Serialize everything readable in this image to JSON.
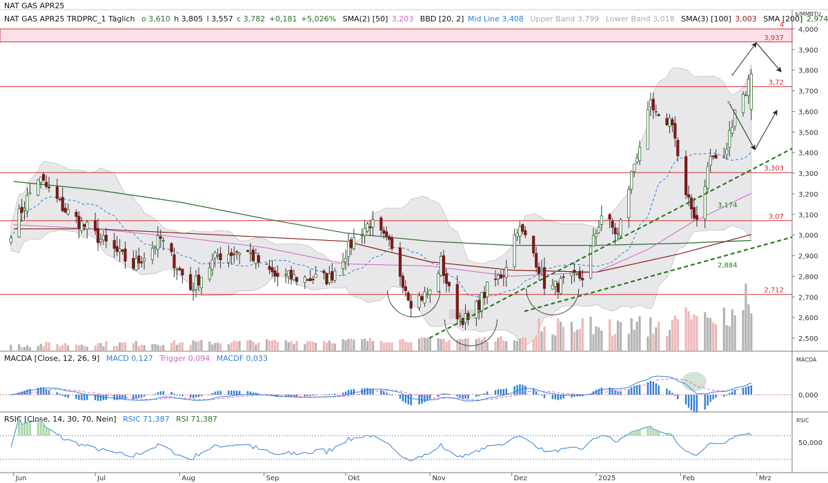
{
  "header": {
    "title": "NAT GAS APR25",
    "instrument": "NAT GAS APR25 TRDPRC_1 Täglich",
    "open": "o 3,610",
    "high": "h 3,805",
    "low": "l 3,557",
    "close": "c 3,782",
    "change": "+0,181",
    "change_pct": "+5,026%",
    "sma2": "SMA(2) [50]",
    "sma2_val": "3,203",
    "bbd": "BBD [20, 2]",
    "bbd_mid": "Mid Line 3,408",
    "bbd_upper": "Upper Band 3,799",
    "bbd_lower": "Lower Band 3,018",
    "sma3": "SMA(3) [100]",
    "sma3_val": "3,003",
    "sma4": "SMA [200]",
    "sma4_val": "2,974"
  },
  "macd_legend": {
    "name": "MACDA [Close, 12, 26, 9]",
    "macd": "MACD 0,127",
    "trigger": "Trigger 0,094",
    "macdf": "MACDF 0,033",
    "axis_title": "MACDA",
    "zero_label": "0,000"
  },
  "rsi_legend": {
    "name": "RSIC [Close, 14, 30, 70, Nein]",
    "rsic": "RSIC 71,387",
    "rsi": "RSI 71,387",
    "axis_title": "RSIC",
    "level_label": "50,000"
  },
  "colors": {
    "up": "#2a6e2a",
    "down": "#7a1a1a",
    "level": "#d42a2a",
    "band_fill": "#e8e8ea",
    "mid": "#2f7fd8",
    "sma50": "#cc66cc",
    "sma100": "#8a1a1a",
    "sma200": "#2a6a2a",
    "trend": "#2a7a1a",
    "macd_line": "#2f7fd8",
    "trigger": "#cc66cc",
    "rsi_line": "#2f7fd8"
  },
  "chart_data": [
    {
      "type": "candlestick",
      "title": "NAT GAS APR25",
      "ylabel": "$/MMBTU",
      "x_ticks": [
        "Jun",
        "Jul",
        "Aug",
        "Sep",
        "Okt",
        "Nov",
        "Dez",
        "2025",
        "Feb",
        "Mrz"
      ],
      "y_ticks": [
        "2,500",
        "2,600",
        "2,700",
        "2,800",
        "2,900",
        "3,000",
        "3,100",
        "3,200",
        "3,300",
        "3,400",
        "3,500",
        "3,600",
        "3,700",
        "3,800",
        "3,900",
        "4,000"
      ],
      "ylim": [
        2.45,
        4.04
      ],
      "levels": [
        {
          "value": 3.937,
          "label": "3,937"
        },
        {
          "value": 3.72,
          "label": "3,72"
        },
        {
          "value": 3.303,
          "label": "3,303"
        },
        {
          "value": 3.07,
          "label": "3,07"
        },
        {
          "value": 2.712,
          "label": "2,712"
        }
      ],
      "zone": {
        "from": 3.937,
        "to": 4.0,
        "label": "4"
      },
      "trend_labels": [
        {
          "value": 3.174,
          "label": "3,174"
        },
        {
          "value": 2.884,
          "label": "2,884"
        }
      ],
      "anchors": [
        {
          "date": "2024-05-31",
          "close": 3.02
        },
        {
          "date": "2024-06-10",
          "close": 3.28
        },
        {
          "date": "2024-06-20",
          "close": 3.12
        },
        {
          "date": "2024-07-01",
          "close": 3.0
        },
        {
          "date": "2024-07-15",
          "close": 2.85
        },
        {
          "date": "2024-07-25",
          "close": 2.98
        },
        {
          "date": "2024-08-05",
          "close": 2.74
        },
        {
          "date": "2024-08-15",
          "close": 2.9
        },
        {
          "date": "2024-08-25",
          "close": 2.93
        },
        {
          "date": "2024-09-05",
          "close": 2.8
        },
        {
          "date": "2024-09-15",
          "close": 2.79
        },
        {
          "date": "2024-09-25",
          "close": 2.79
        },
        {
          "date": "2024-10-05",
          "close": 3.0
        },
        {
          "date": "2024-10-10",
          "close": 3.06
        },
        {
          "date": "2024-10-17",
          "close": 2.95
        },
        {
          "date": "2024-10-25",
          "close": 2.68
        },
        {
          "date": "2024-11-01",
          "close": 2.72
        },
        {
          "date": "2024-11-05",
          "close": 2.87
        },
        {
          "date": "2024-11-10",
          "close": 2.63
        },
        {
          "date": "2024-11-15",
          "close": 2.58
        },
        {
          "date": "2024-11-22",
          "close": 2.74
        },
        {
          "date": "2024-11-28",
          "close": 2.82
        },
        {
          "date": "2024-12-03",
          "close": 3.04
        },
        {
          "date": "2024-12-08",
          "close": 2.95
        },
        {
          "date": "2024-12-14",
          "close": 2.73
        },
        {
          "date": "2024-12-20",
          "close": 2.77
        },
        {
          "date": "2024-12-27",
          "close": 2.8
        },
        {
          "date": "2025-01-03",
          "close": 3.1
        },
        {
          "date": "2025-01-09",
          "close": 3.0
        },
        {
          "date": "2025-01-15",
          "close": 3.35
        },
        {
          "date": "2025-01-21",
          "close": 3.62
        },
        {
          "date": "2025-01-24",
          "close": 3.55
        },
        {
          "date": "2025-01-29",
          "close": 3.56
        },
        {
          "date": "2025-02-02",
          "close": 3.2
        },
        {
          "date": "2025-02-07",
          "close": 3.08
        },
        {
          "date": "2025-02-12",
          "close": 3.38
        },
        {
          "date": "2025-02-17",
          "close": 3.36
        },
        {
          "date": "2025-02-21",
          "close": 3.62
        },
        {
          "date": "2025-02-25",
          "close": 3.7
        },
        {
          "date": "2025-02-27",
          "close": 3.782
        }
      ],
      "sma50": [
        {
          "date": "2024-06-01",
          "value": 3.05
        },
        {
          "date": "2024-07-01",
          "value": 3.03
        },
        {
          "date": "2024-08-01",
          "value": 2.99
        },
        {
          "date": "2024-09-01",
          "value": 2.94
        },
        {
          "date": "2024-10-01",
          "value": 2.86
        },
        {
          "date": "2024-11-01",
          "value": 2.85
        },
        {
          "date": "2024-12-01",
          "value": 2.8
        },
        {
          "date": "2025-01-01",
          "value": 2.82
        },
        {
          "date": "2025-01-20",
          "value": 2.93
        },
        {
          "date": "2025-02-05",
          "value": 3.06
        },
        {
          "date": "2025-02-27",
          "value": 3.203
        }
      ],
      "sma100": [
        {
          "date": "2024-06-01",
          "value": 3.03
        },
        {
          "date": "2024-07-01",
          "value": 3.03
        },
        {
          "date": "2024-08-01",
          "value": 3.01
        },
        {
          "date": "2024-09-01",
          "value": 2.99
        },
        {
          "date": "2024-10-01",
          "value": 2.97
        },
        {
          "date": "2024-11-01",
          "value": 2.87
        },
        {
          "date": "2024-12-01",
          "value": 2.83
        },
        {
          "date": "2025-01-01",
          "value": 2.82
        },
        {
          "date": "2025-02-01",
          "value": 2.91
        },
        {
          "date": "2025-02-27",
          "value": 3.003
        }
      ],
      "sma200": [
        {
          "date": "2024-06-01",
          "value": 3.26
        },
        {
          "date": "2024-07-01",
          "value": 3.22
        },
        {
          "date": "2024-08-01",
          "value": 3.16
        },
        {
          "date": "2024-09-01",
          "value": 3.08
        },
        {
          "date": "2024-10-01",
          "value": 3.01
        },
        {
          "date": "2024-11-01",
          "value": 2.97
        },
        {
          "date": "2024-12-01",
          "value": 2.95
        },
        {
          "date": "2025-01-01",
          "value": 2.95
        },
        {
          "date": "2025-02-01",
          "value": 2.96
        },
        {
          "date": "2025-02-27",
          "value": 2.974
        }
      ]
    },
    {
      "type": "line",
      "title": "MACDA [Close, 12, 26, 9]",
      "series": [
        {
          "name": "MACD",
          "value": 0.127
        },
        {
          "name": "Trigger",
          "value": 0.094
        },
        {
          "name": "MACDF",
          "value": 0.033
        }
      ]
    },
    {
      "type": "line",
      "title": "RSIC [Close, 14, 30, 70, Nein]",
      "series": [
        {
          "name": "RSIC",
          "value": 71.387
        },
        {
          "name": "RSI",
          "value": 71.387
        }
      ],
      "levels": [
        30,
        70
      ]
    }
  ]
}
